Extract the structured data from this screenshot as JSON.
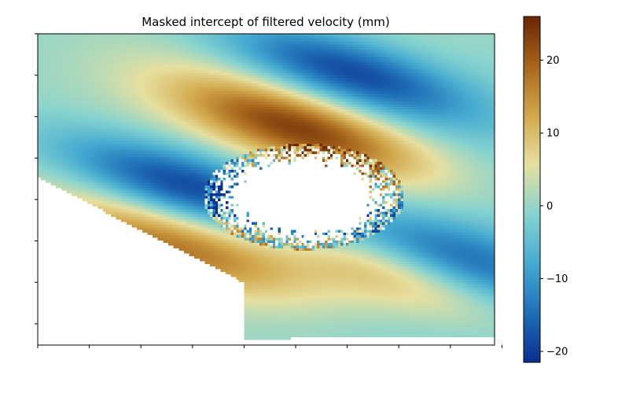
{
  "chart_data": {
    "type": "heatmap",
    "title": "Masked intercept of filtered velocity (mm)",
    "xlabel": "",
    "ylabel": "",
    "x_ticks_count": 10,
    "y_ticks_count": 8,
    "x_tick_labels": [],
    "y_tick_labels": [],
    "colorbar": {
      "label": "",
      "vmin": -21.5,
      "vmax": 26,
      "ticks": [
        -20,
        -10,
        0,
        10,
        20
      ],
      "tick_labels": [
        "−20",
        "−10",
        "0",
        "10",
        "20"
      ],
      "colors": [
        "#0a2d8f",
        "#1f6fb7",
        "#45aad0",
        "#86d3cf",
        "#e6e0a0",
        "#d2a84c",
        "#a8661c",
        "#6b2503"
      ]
    },
    "masked_color": "#ffffff",
    "grid": false,
    "field_features": [
      {
        "name": "negative band NE",
        "value": -20,
        "cx": 0.68,
        "cy": 0.12
      },
      {
        "name": "negative band W",
        "value": -21,
        "cx": 0.33,
        "cy": 0.49
      },
      {
        "name": "negative band SE",
        "value": -15,
        "cx": 0.92,
        "cy": 0.72
      },
      {
        "name": "positive band N",
        "value": 22,
        "cx": 0.57,
        "cy": 0.3
      },
      {
        "name": "positive band SW",
        "value": 16,
        "cx": 0.3,
        "cy": 0.68
      },
      {
        "name": "positive band S",
        "value": 12,
        "cx": 0.75,
        "cy": 0.75
      }
    ]
  }
}
